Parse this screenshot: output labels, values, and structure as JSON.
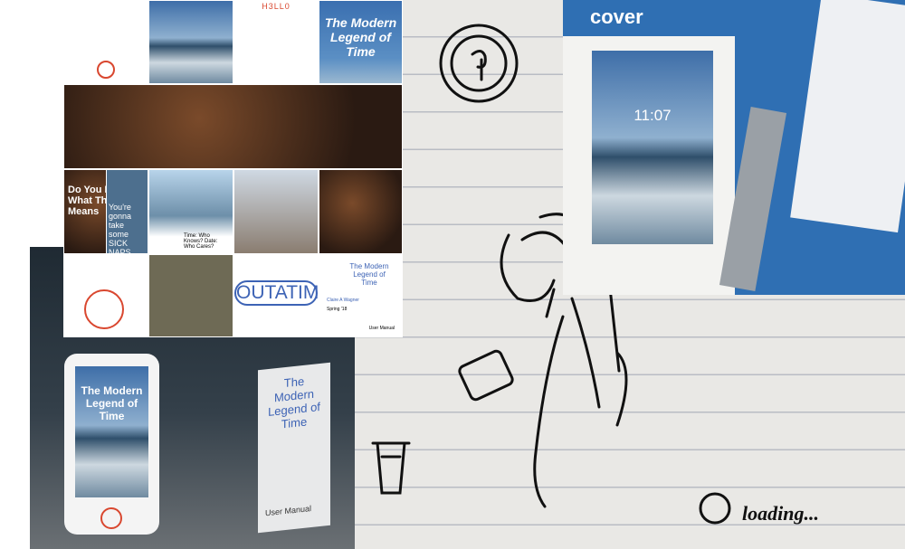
{
  "collage": {
    "hello": "H3LL0",
    "title_tile": "The Modern Legend of Time",
    "question": "Do You Know What This Means",
    "naps": "You're gonna take some SICK NAPS",
    "time_caption": "Time: Who Knows? Date: Who Cares?",
    "outatime": "OUTATIME",
    "cover_page": {
      "title": "The Modern Legend of Time",
      "author": "Claire A Wagner",
      "term": "Spring '18",
      "subtitle": "User Manual"
    }
  },
  "photo_device": {
    "screen_title": "The Modern Legend of Time",
    "manual_title": "The Modern Legend of Time",
    "manual_subtitle": "User Manual"
  },
  "photo_print": {
    "label": "cover",
    "clock": "11:07"
  },
  "sketch": {
    "status": "loading..."
  }
}
